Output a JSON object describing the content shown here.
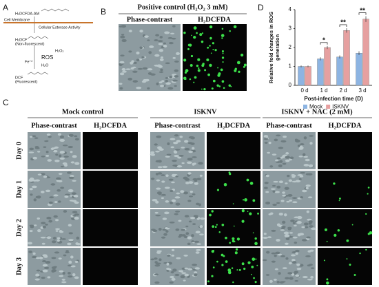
{
  "panel_a": {
    "label": "A",
    "probe": "H₂DCFDA-AM",
    "membrane": "Cell Membrane",
    "esterase": "Cellular Esterase Activity",
    "h2dcf": "H₂DCF",
    "h2dcf_note": "(Non-fluorescent)",
    "h2o2": "H₂O₂",
    "ros": "ROS",
    "fe": "Fe⁺²",
    "h2o": "H₂O",
    "dcf": "DCF",
    "dcf_note": "(Fluorescent)"
  },
  "panel_b": {
    "label": "B",
    "title": "Positive control (H₂O₂ 3 mM)",
    "columns": [
      "Phase-contrast",
      "H₂DCFDA"
    ]
  },
  "panel_c": {
    "label": "C",
    "groups": [
      "Mock control",
      "ISKNV",
      "ISKNV + NAC (2 mM)"
    ],
    "columns": [
      "Phase-contrast",
      "H₂DCFDA"
    ],
    "rows": [
      "Day 0",
      "Day 1",
      "Day 2",
      "Day 3"
    ]
  },
  "chart_data": {
    "type": "bar",
    "label": "D",
    "ylabel": [
      "Relative fold changes in ROS",
      "generation"
    ],
    "xlabel": "Post-infection time (D)",
    "categories": [
      "0 d",
      "1 d",
      "2 d",
      "3 d"
    ],
    "series": [
      {
        "name": "Mock",
        "color": "#8db4e2",
        "values": [
          1.0,
          1.4,
          1.5,
          1.7
        ],
        "errors": [
          0.05,
          0.08,
          0.08,
          0.1
        ]
      },
      {
        "name": "ISKNV",
        "color": "#e6a0a0",
        "values": [
          1.0,
          2.0,
          2.9,
          3.5
        ],
        "errors": [
          0.05,
          0.08,
          0.12,
          0.15
        ]
      }
    ],
    "significance": [
      null,
      "*",
      "**",
      "**"
    ],
    "ylim": [
      0,
      4
    ],
    "yticks": [
      0,
      1,
      2,
      3,
      4
    ],
    "legend": "bottom"
  }
}
